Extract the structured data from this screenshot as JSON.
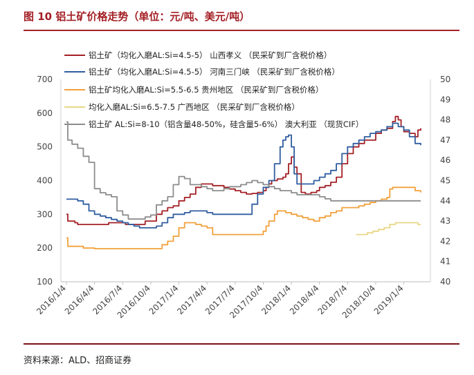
{
  "title": "图 10  铝土矿价格走势（单位：元/吨、美元/吨）",
  "source": "资料来源：ALD、招商证券",
  "chart_data": {
    "type": "line",
    "x_ticks": [
      "2016/1/4",
      "2016/4/4",
      "2016/7/4",
      "2016/10/4",
      "2017/1/4",
      "2017/4/4",
      "2017/7/4",
      "2017/10/4",
      "2018/1/4",
      "2018/4/4",
      "2018/7/4",
      "2018/10/4",
      "2019/1/4"
    ],
    "y_left": {
      "min": 100,
      "max": 700,
      "ticks": [
        100,
        200,
        300,
        400,
        500,
        600,
        700
      ]
    },
    "y_right": {
      "min": 40,
      "max": 50,
      "ticks": [
        40,
        41,
        42,
        43,
        44,
        45,
        46,
        47,
        48,
        49,
        50
      ]
    },
    "series": [
      {
        "name": "铝土矿（均化入磨AL:Si=4.5-5） 山西孝义 （民采矿到厂含税价格）",
        "color": "#a31f24",
        "axis": "left",
        "points": [
          [
            0,
            300
          ],
          [
            0.05,
            280
          ],
          [
            0.3,
            275
          ],
          [
            0.4,
            270
          ],
          [
            1.0,
            270
          ],
          [
            1.5,
            275
          ],
          [
            2.0,
            275
          ],
          [
            2.1,
            270
          ],
          [
            2.6,
            270
          ],
          [
            2.8,
            280
          ],
          [
            3.2,
            300
          ],
          [
            3.4,
            310
          ],
          [
            3.6,
            320
          ],
          [
            3.8,
            325
          ],
          [
            4.0,
            340
          ],
          [
            4.2,
            350
          ],
          [
            4.4,
            360
          ],
          [
            4.6,
            380
          ],
          [
            4.8,
            390
          ],
          [
            5.0,
            390
          ],
          [
            5.2,
            385
          ],
          [
            5.4,
            385
          ],
          [
            5.6,
            380
          ],
          [
            5.8,
            375
          ],
          [
            6.0,
            370
          ],
          [
            6.2,
            365
          ],
          [
            6.4,
            360
          ],
          [
            6.6,
            362
          ],
          [
            6.8,
            365
          ],
          [
            7.0,
            370
          ],
          [
            7.1,
            380
          ],
          [
            7.2,
            390
          ],
          [
            7.3,
            400
          ],
          [
            7.5,
            405
          ],
          [
            7.7,
            410
          ],
          [
            7.8,
            420
          ],
          [
            7.9,
            450
          ],
          [
            8.0,
            470
          ],
          [
            8.1,
            440
          ],
          [
            8.2,
            420
          ],
          [
            8.35,
            365
          ],
          [
            8.5,
            360
          ],
          [
            8.7,
            365
          ],
          [
            8.9,
            370
          ],
          [
            9.0,
            380
          ],
          [
            9.2,
            385
          ],
          [
            9.4,
            395
          ],
          [
            9.6,
            410
          ],
          [
            9.8,
            450
          ],
          [
            10.0,
            480
          ],
          [
            10.2,
            500
          ],
          [
            10.4,
            510
          ],
          [
            10.6,
            520
          ],
          [
            10.8,
            520
          ],
          [
            11.0,
            540
          ],
          [
            11.2,
            550
          ],
          [
            11.4,
            555
          ],
          [
            11.6,
            575
          ],
          [
            11.7,
            590
          ],
          [
            11.8,
            580
          ],
          [
            11.9,
            560
          ],
          [
            12.0,
            545
          ],
          [
            12.2,
            540
          ],
          [
            12.4,
            530
          ],
          [
            12.5,
            550
          ],
          [
            12.6,
            555
          ]
        ]
      },
      {
        "name": "铝土矿（均化入磨AL:Si=4.5-5） 河南三门峡 （民采矿到厂含税价格）",
        "color": "#2f5d9f",
        "axis": "left",
        "points": [
          [
            0,
            345
          ],
          [
            0.2,
            345
          ],
          [
            0.4,
            340
          ],
          [
            0.6,
            330
          ],
          [
            0.8,
            310
          ],
          [
            1.0,
            300
          ],
          [
            1.2,
            295
          ],
          [
            1.4,
            290
          ],
          [
            1.6,
            285
          ],
          [
            1.8,
            280
          ],
          [
            2.0,
            275
          ],
          [
            2.2,
            270
          ],
          [
            2.4,
            265
          ],
          [
            2.6,
            260
          ],
          [
            2.8,
            260
          ],
          [
            3.0,
            260
          ],
          [
            3.2,
            265
          ],
          [
            3.4,
            275
          ],
          [
            3.6,
            290
          ],
          [
            3.8,
            300
          ],
          [
            4.0,
            300
          ],
          [
            4.2,
            305
          ],
          [
            4.4,
            310
          ],
          [
            4.6,
            310
          ],
          [
            4.8,
            310
          ],
          [
            5.0,
            305
          ],
          [
            5.2,
            300
          ],
          [
            5.4,
            300
          ],
          [
            5.6,
            300
          ],
          [
            5.8,
            300
          ],
          [
            6.0,
            300
          ],
          [
            6.2,
            300
          ],
          [
            6.4,
            300
          ],
          [
            6.6,
            330
          ],
          [
            6.8,
            360
          ],
          [
            7.0,
            380
          ],
          [
            7.2,
            400
          ],
          [
            7.4,
            450
          ],
          [
            7.6,
            500
          ],
          [
            7.7,
            520
          ],
          [
            7.8,
            530
          ],
          [
            7.9,
            535
          ],
          [
            8.0,
            500
          ],
          [
            8.1,
            420
          ],
          [
            8.2,
            390
          ],
          [
            8.4,
            390
          ],
          [
            8.6,
            390
          ],
          [
            8.8,
            400
          ],
          [
            9.0,
            410
          ],
          [
            9.2,
            420
          ],
          [
            9.4,
            430
          ],
          [
            9.6,
            450
          ],
          [
            9.8,
            480
          ],
          [
            10.0,
            500
          ],
          [
            10.2,
            510
          ],
          [
            10.4,
            520
          ],
          [
            10.6,
            530
          ],
          [
            10.8,
            540
          ],
          [
            11.0,
            545
          ],
          [
            11.2,
            550
          ],
          [
            11.4,
            560
          ],
          [
            11.6,
            570
          ],
          [
            11.8,
            560
          ],
          [
            12.0,
            550
          ],
          [
            12.2,
            530
          ],
          [
            12.4,
            510
          ],
          [
            12.6,
            505
          ]
        ]
      },
      {
        "name": "铝土矿均化入磨AL:Si=5.5-6.5 贵州地区 （民采矿到厂含税价格）",
        "color": "#f2a03a",
        "axis": "left",
        "points": [
          [
            0,
            230
          ],
          [
            0.05,
            205
          ],
          [
            0.3,
            205
          ],
          [
            0.6,
            200
          ],
          [
            1.0,
            198
          ],
          [
            1.5,
            198
          ],
          [
            2.0,
            198
          ],
          [
            2.5,
            198
          ],
          [
            3.0,
            198
          ],
          [
            3.3,
            198
          ],
          [
            3.4,
            210
          ],
          [
            3.6,
            220
          ],
          [
            3.8,
            235
          ],
          [
            4.0,
            260
          ],
          [
            4.2,
            275
          ],
          [
            4.4,
            275
          ],
          [
            4.6,
            270
          ],
          [
            4.8,
            265
          ],
          [
            5.0,
            260
          ],
          [
            5.2,
            240
          ],
          [
            5.4,
            240
          ],
          [
            5.6,
            240
          ],
          [
            5.8,
            240
          ],
          [
            6.0,
            240
          ],
          [
            6.2,
            240
          ],
          [
            6.4,
            240
          ],
          [
            6.6,
            240
          ],
          [
            6.8,
            240
          ],
          [
            7.0,
            250
          ],
          [
            7.1,
            265
          ],
          [
            7.2,
            280
          ],
          [
            7.4,
            300
          ],
          [
            7.5,
            310
          ],
          [
            7.6,
            310
          ],
          [
            7.8,
            305
          ],
          [
            8.0,
            300
          ],
          [
            8.2,
            295
          ],
          [
            8.4,
            290
          ],
          [
            8.6,
            285
          ],
          [
            8.8,
            280
          ],
          [
            9.0,
            290
          ],
          [
            9.2,
            295
          ],
          [
            9.4,
            305
          ],
          [
            9.6,
            310
          ],
          [
            9.8,
            320
          ],
          [
            10.0,
            320
          ],
          [
            10.2,
            320
          ],
          [
            10.4,
            325
          ],
          [
            10.6,
            330
          ],
          [
            10.8,
            335
          ],
          [
            11.0,
            340
          ],
          [
            11.2,
            345
          ],
          [
            11.4,
            350
          ],
          [
            11.5,
            375
          ],
          [
            11.6,
            380
          ],
          [
            12.0,
            380
          ],
          [
            12.2,
            380
          ],
          [
            12.4,
            370
          ],
          [
            12.6,
            365
          ]
        ]
      },
      {
        "name": "均化入磨AL:Si=6.5-7.5 广西地区 （民采矿到厂含税价格）",
        "color": "#e8d784",
        "axis": "left",
        "points": [
          [
            10.3,
            240
          ],
          [
            10.5,
            240
          ],
          [
            10.7,
            245
          ],
          [
            10.9,
            250
          ],
          [
            11.1,
            255
          ],
          [
            11.3,
            260
          ],
          [
            11.5,
            270
          ],
          [
            11.7,
            275
          ],
          [
            11.9,
            275
          ],
          [
            12.1,
            275
          ],
          [
            12.3,
            275
          ],
          [
            12.5,
            270
          ],
          [
            12.6,
            270
          ]
        ]
      },
      {
        "name": "铝土矿 AL:Si=8-10（铝含量48-50%，硅含量5-6%） 澳大利亚 （现货CIF）",
        "color": "#8c8c8c",
        "axis": "right",
        "points": [
          [
            0,
            47.9
          ],
          [
            0.05,
            47.0
          ],
          [
            0.2,
            46.8
          ],
          [
            0.4,
            46.6
          ],
          [
            0.6,
            46.2
          ],
          [
            0.8,
            45.9
          ],
          [
            1.0,
            44.6
          ],
          [
            1.2,
            44.4
          ],
          [
            1.4,
            44.3
          ],
          [
            1.6,
            44.2
          ],
          [
            1.8,
            43.5
          ],
          [
            2.0,
            43.3
          ],
          [
            2.2,
            43.1
          ],
          [
            2.4,
            43.1
          ],
          [
            2.6,
            43.1
          ],
          [
            2.8,
            43.2
          ],
          [
            3.0,
            43.3
          ],
          [
            3.2,
            43.8
          ],
          [
            3.4,
            44.0
          ],
          [
            3.6,
            44.2
          ],
          [
            3.8,
            44.8
          ],
          [
            4.0,
            45.2
          ],
          [
            4.2,
            45.1
          ],
          [
            4.4,
            44.8
          ],
          [
            4.6,
            44.8
          ],
          [
            4.8,
            44.7
          ],
          [
            5.0,
            44.6
          ],
          [
            5.2,
            44.5
          ],
          [
            5.4,
            44.5
          ],
          [
            5.6,
            44.6
          ],
          [
            5.8,
            44.7
          ],
          [
            6.0,
            44.7
          ],
          [
            6.2,
            44.8
          ],
          [
            6.4,
            44.9
          ],
          [
            6.6,
            45.0
          ],
          [
            6.8,
            44.9
          ],
          [
            7.0,
            44.8
          ],
          [
            7.2,
            44.7
          ],
          [
            7.4,
            44.6
          ],
          [
            7.6,
            44.5
          ],
          [
            7.8,
            44.5
          ],
          [
            8.0,
            44.4
          ],
          [
            8.2,
            44.3
          ],
          [
            8.4,
            44.3
          ],
          [
            8.6,
            44.3
          ],
          [
            8.8,
            44.3
          ],
          [
            9.0,
            44.2
          ],
          [
            9.2,
            44.1
          ],
          [
            9.4,
            44.0
          ],
          [
            9.6,
            44.0
          ],
          [
            9.8,
            44.0
          ],
          [
            10.0,
            44.0
          ],
          [
            10.2,
            44.0
          ],
          [
            10.4,
            44.0
          ],
          [
            10.6,
            44.0
          ],
          [
            10.8,
            44.0
          ],
          [
            11.0,
            44.0
          ],
          [
            11.2,
            44.0
          ],
          [
            11.4,
            44.0
          ],
          [
            11.6,
            44.0
          ],
          [
            11.8,
            44.0
          ],
          [
            12.0,
            44.0
          ],
          [
            12.2,
            44.0
          ],
          [
            12.4,
            44.0
          ],
          [
            12.6,
            44.0
          ]
        ]
      }
    ]
  }
}
